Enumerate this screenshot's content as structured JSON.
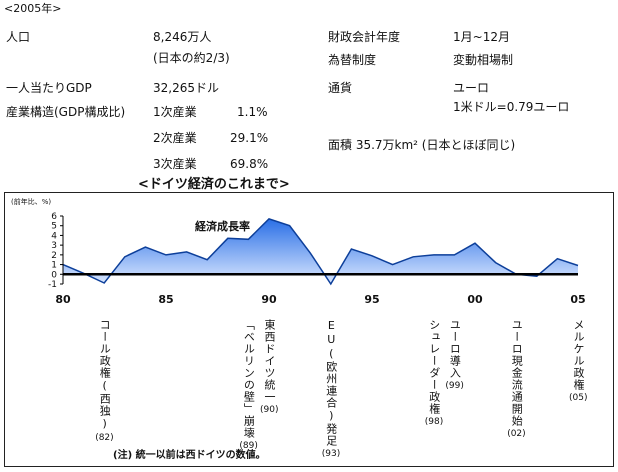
{
  "header": {
    "year_tag": "<2005年>"
  },
  "stats": {
    "population_label": "人口",
    "population_value": "8,246万人",
    "population_note": "(日本の約2/3)",
    "gdp_per_capita_label": "一人当たりGDP",
    "gdp_per_capita_value": "32,265ドル",
    "structure_label": "産業構造(GDP構成比)",
    "primary_label": "1次産業",
    "primary_value": "1.1%",
    "secondary_label": "2次産業",
    "secondary_value": "29.1%",
    "tertiary_label": "3次産業",
    "tertiary_value": "69.8%",
    "fiscal_year_label": "財政会計年度",
    "fiscal_year_value": "1月~12月",
    "fx_label": "為替制度",
    "fx_value": "変動相場制",
    "currency_label": "通貨",
    "currency_value": "ユーロ",
    "currency_rate": "1米ドル=0.79ユーロ",
    "area_text": "面積 35.7万km² (日本とほぼ同じ)"
  },
  "chart_section_title": "<ドイツ経済のこれまで>",
  "chart_data": {
    "type": "line",
    "title": "",
    "ylabel": "(前年比、%)",
    "series": [
      {
        "name": "経済成長率",
        "color": "#1a5fd0",
        "x": [
          1980,
          1981,
          1982,
          1983,
          1984,
          1985,
          1986,
          1987,
          1988,
          1989,
          1990,
          1991,
          1992,
          1993,
          1994,
          1995,
          1996,
          1997,
          1998,
          1999,
          2000,
          2001,
          2002,
          2003,
          2004,
          2005
        ],
        "values": [
          1.0,
          0.1,
          -0.9,
          1.8,
          2.8,
          2.0,
          2.3,
          1.5,
          3.7,
          3.6,
          5.7,
          5.0,
          2.2,
          -1.0,
          2.6,
          1.9,
          1.0,
          1.8,
          2.0,
          2.0,
          3.2,
          1.2,
          0.0,
          -0.2,
          1.6,
          0.9
        ]
      }
    ],
    "ylim": [
      -1,
      6
    ],
    "y_ticks": [
      "6",
      "5",
      "4",
      "3",
      "2",
      "1",
      "0",
      "-1"
    ],
    "x_ticks": [
      "80",
      "85",
      "90",
      "95",
      "00",
      "05"
    ],
    "annotations": [
      {
        "year": 1982,
        "text": "コール政権(西独)",
        "code": "(82)"
      },
      {
        "year": 1989,
        "text": "「ベルリンの壁」崩壊",
        "code": "(89)"
      },
      {
        "year": 1990,
        "text": "東西ドイツ統一",
        "code": "(90)"
      },
      {
        "year": 1993,
        "text": "EU(欧州連合)発足",
        "code": "(93)"
      },
      {
        "year": 1998,
        "text": "シュレーダー政権",
        "code": "(98)"
      },
      {
        "year": 1999,
        "text": "ユーロ導入",
        "code": "(99)"
      },
      {
        "year": 2002,
        "text": "ユーロ現金流通開始",
        "code": "(02)"
      },
      {
        "year": 2005,
        "text": "メルケル政権",
        "code": "(05)"
      }
    ],
    "footnote": "(注) 統一以前は西ドイツの数値。"
  }
}
